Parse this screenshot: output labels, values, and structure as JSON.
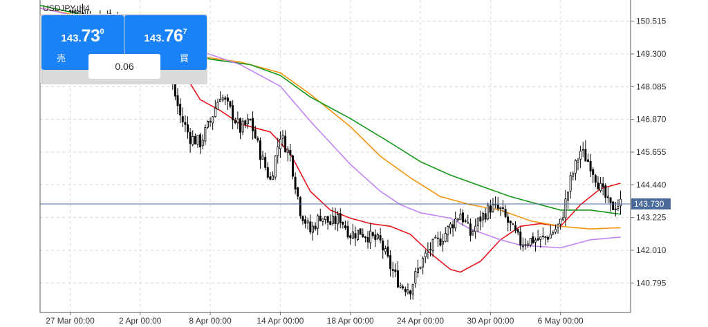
{
  "header": {
    "symbol": "USDJPY, H4"
  },
  "trade_panel": {
    "sell": {
      "price_small": "143.",
      "price_big": "73",
      "price_sup": "0",
      "label": "売"
    },
    "buy": {
      "price_small": "143.",
      "price_big": "76",
      "price_sup": "7",
      "label": "買"
    },
    "spread": "0.06"
  },
  "colors": {
    "candle": "#000000",
    "ma_red": "#e8141c",
    "ma_orange": "#f3940c",
    "ma_green": "#109614",
    "ma_purple": "#c183f5",
    "current_price_line": "#4a6a9a",
    "current_price_tag": "#4a6a9a",
    "grid": "#d8d8d8",
    "trade_button": "#1a82f7"
  },
  "chart_data": {
    "type": "candlestick",
    "symbol": "USDJPY",
    "timeframe": "H4",
    "ylim": [
      139.7,
      151.3
    ],
    "x_range_index": [
      -6,
      112
    ],
    "y_ticks": [
      "150.515",
      "149.300",
      "148.085",
      "146.870",
      "145.655",
      "144.440",
      "143.225",
      "142.010",
      "140.795"
    ],
    "x_ticks": [
      {
        "label": "27 Mar 00:00",
        "index": 0
      },
      {
        "label": "2 Apr 00:00",
        "index": 14
      },
      {
        "label": "8 Apr 00:00",
        "index": 28
      },
      {
        "label": "14 Apr 00:00",
        "index": 42
      },
      {
        "label": "18 Apr 00:00",
        "index": 56
      },
      {
        "label": "24 Apr 00:00",
        "index": 70
      },
      {
        "label": "30 Apr 00:00",
        "index": 84
      },
      {
        "label": "6 May 00:00",
        "index": 98
      }
    ],
    "current_price": "143.730",
    "candle_waypoints": [
      [
        0,
        150.9
      ],
      [
        8,
        150.5
      ],
      [
        12,
        150.2
      ],
      [
        16,
        149.7
      ],
      [
        20,
        148.5
      ],
      [
        22,
        147.0
      ],
      [
        24,
        146.2
      ],
      [
        26,
        146.0
      ],
      [
        28,
        146.8
      ],
      [
        30,
        147.8
      ],
      [
        32,
        147.2
      ],
      [
        34,
        146.5
      ],
      [
        36,
        146.8
      ],
      [
        38,
        145.6
      ],
      [
        40,
        144.6
      ],
      [
        42,
        146.3
      ],
      [
        44,
        145.5
      ],
      [
        46,
        143.5
      ],
      [
        48,
        142.7
      ],
      [
        50,
        143.3
      ],
      [
        52,
        143.0
      ],
      [
        54,
        143.2
      ],
      [
        56,
        142.6
      ],
      [
        58,
        142.7
      ],
      [
        60,
        142.5
      ],
      [
        62,
        142.3
      ],
      [
        64,
        141.4
      ],
      [
        66,
        140.7
      ],
      [
        68,
        140.6
      ],
      [
        70,
        141.5
      ],
      [
        72,
        142.1
      ],
      [
        74,
        142.4
      ],
      [
        76,
        142.9
      ],
      [
        78,
        143.4
      ],
      [
        80,
        142.6
      ],
      [
        82,
        143.2
      ],
      [
        84,
        143.6
      ],
      [
        86,
        143.5
      ],
      [
        88,
        142.9
      ],
      [
        90,
        142.3
      ],
      [
        92,
        142.4
      ],
      [
        94,
        142.4
      ],
      [
        96,
        142.6
      ],
      [
        98,
        143.0
      ],
      [
        100,
        144.6
      ],
      [
        102,
        145.7
      ],
      [
        104,
        145.2
      ],
      [
        106,
        144.3
      ],
      [
        108,
        143.6
      ],
      [
        110,
        143.75
      ]
    ],
    "series": [
      {
        "color_key": "ma_red",
        "points": [
          [
            -6,
            150.7
          ],
          [
            12,
            150.4
          ],
          [
            20,
            149.4
          ],
          [
            26,
            147.6
          ],
          [
            30,
            147.2
          ],
          [
            34,
            146.7
          ],
          [
            40,
            146.4
          ],
          [
            44,
            145.6
          ],
          [
            48,
            144.2
          ],
          [
            52,
            143.5
          ],
          [
            56,
            143.2
          ],
          [
            60,
            143.0
          ],
          [
            64,
            142.9
          ],
          [
            68,
            142.6
          ],
          [
            72,
            141.9
          ],
          [
            76,
            141.3
          ],
          [
            78,
            141.2
          ],
          [
            82,
            141.6
          ],
          [
            86,
            142.4
          ],
          [
            90,
            142.9
          ],
          [
            94,
            143.0
          ],
          [
            98,
            142.9
          ],
          [
            102,
            143.7
          ],
          [
            106,
            144.3
          ],
          [
            110,
            144.5
          ]
        ]
      },
      {
        "color_key": "ma_orange",
        "points": [
          [
            -6,
            151.0
          ],
          [
            16,
            150.2
          ],
          [
            20,
            149.7
          ],
          [
            26,
            149.2
          ],
          [
            34,
            149.0
          ],
          [
            42,
            148.6
          ],
          [
            48,
            147.8
          ],
          [
            56,
            146.6
          ],
          [
            62,
            145.5
          ],
          [
            68,
            144.7
          ],
          [
            74,
            144.0
          ],
          [
            80,
            143.7
          ],
          [
            86,
            143.5
          ],
          [
            92,
            143.1
          ],
          [
            98,
            142.9
          ],
          [
            104,
            142.8
          ],
          [
            110,
            142.85
          ]
        ]
      },
      {
        "color_key": "ma_green",
        "points": [
          [
            -6,
            151.1
          ],
          [
            16,
            150.2
          ],
          [
            20,
            149.6
          ],
          [
            28,
            149.1
          ],
          [
            36,
            148.9
          ],
          [
            42,
            148.5
          ],
          [
            48,
            147.7
          ],
          [
            56,
            146.9
          ],
          [
            64,
            146.0
          ],
          [
            70,
            145.3
          ],
          [
            76,
            144.8
          ],
          [
            82,
            144.4
          ],
          [
            88,
            144.0
          ],
          [
            94,
            143.7
          ],
          [
            98,
            143.5
          ],
          [
            104,
            143.5
          ],
          [
            110,
            143.35
          ]
        ]
      },
      {
        "color_key": "ma_purple",
        "points": [
          [
            -6,
            151.0
          ],
          [
            16,
            150.1
          ],
          [
            20,
            149.6
          ],
          [
            26,
            149.4
          ],
          [
            34,
            148.9
          ],
          [
            42,
            148.1
          ],
          [
            48,
            146.8
          ],
          [
            56,
            145.2
          ],
          [
            62,
            144.2
          ],
          [
            66,
            143.7
          ],
          [
            70,
            143.4
          ],
          [
            76,
            143.2
          ],
          [
            80,
            142.8
          ],
          [
            86,
            142.4
          ],
          [
            90,
            142.2
          ],
          [
            98,
            142.1
          ],
          [
            104,
            142.4
          ],
          [
            110,
            142.5
          ]
        ]
      }
    ]
  }
}
